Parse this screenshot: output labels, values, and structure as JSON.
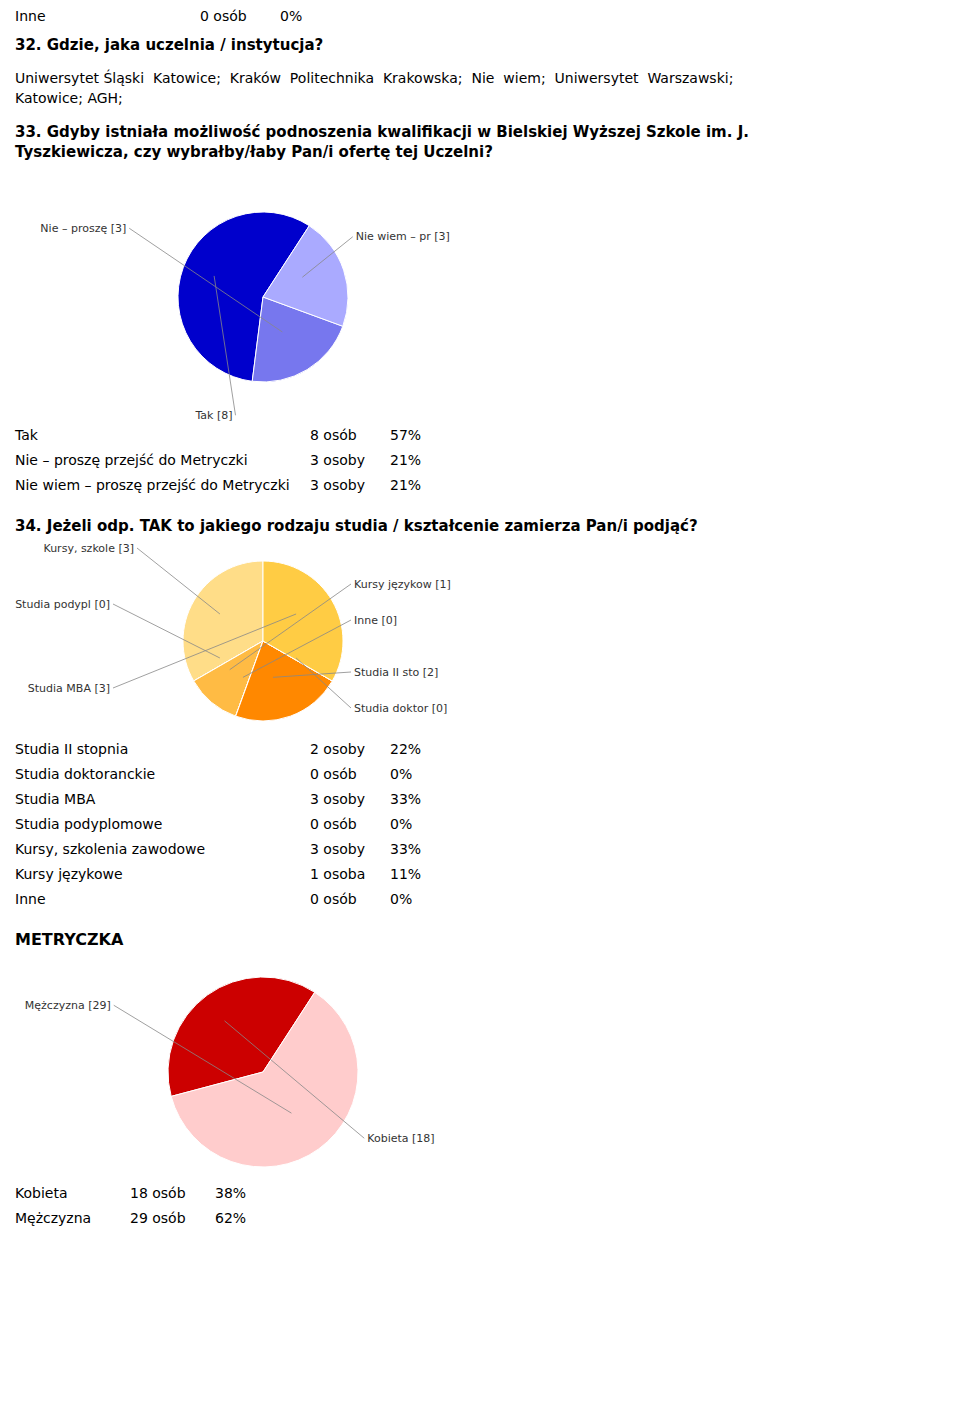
{
  "chart_data": [
    {
      "type": "pie",
      "annotations": [
        {
          "cells": [
            "Inne",
            "0 osób",
            "0%"
          ]
        },
        {
          "heading": "32. Gdzie, jaka uczelnia / instytucja?"
        },
        {
          "text": "Uniwersytet Śląski  Katowice;  Kraków  Politechnika  Krakowska;  Nie  wiem;  Uniwersytet  Warszawski;"
        },
        {
          "text": "Katowice; AGH;"
        }
      ],
      "title": "33. Gdyby istniała możliwość podnoszenia kwalifikacji w Bielskiej Wyższej Szkole im. J.\nTyszkiewicza, czy wybrałby/łaby Pan/i ofertę tej Uczelni?",
      "categories": [
        "Tak [8]",
        "Nie – proszę [3]",
        "Nie wiem – pr [3]"
      ],
      "values": [
        8,
        3,
        3
      ],
      "colors": [
        "#0000cc",
        "#7777ee",
        "#aaaaff"
      ],
      "table": [
        {
          "label": "Tak",
          "count": "8 osób",
          "pct": "57%"
        },
        {
          "label": "Nie – proszę przejść do Metryczki",
          "count": "3 osoby",
          "pct": "21%"
        },
        {
          "label": "Nie wiem – proszę przejść do Metryczki",
          "count": "3 osoby",
          "pct": "21%"
        }
      ]
    },
    {
      "type": "pie",
      "title": "34. Jeżeli odp. TAK to jakiego rodzaju studia / kształcenie zamierza Pan/i podjąć?",
      "categories": [
        "Kursy, szkole [3]",
        "Studia podypl [0]",
        "Kursy językow [1]",
        "Inne [0]",
        "Studia II sto [2]",
        "Studia doktor [0]",
        "Studia MBA [3]"
      ],
      "values": [
        3,
        0.001,
        1,
        0.001,
        2,
        0.001,
        3
      ],
      "colors": [
        "#ffdd88",
        "#ffcc66",
        "#ffbb44",
        "#ffaa22",
        "#ff8800",
        "#ee6600",
        "#ffcc44"
      ],
      "table": [
        {
          "label": "Studia II stopnia",
          "count": "2 osoby",
          "pct": "22%"
        },
        {
          "label": "Studia doktoranckie",
          "count": "0 osób",
          "pct": "0%"
        },
        {
          "label": "Studia MBA",
          "count": "3 osoby",
          "pct": "33%"
        },
        {
          "label": "Studia podyplomowe",
          "count": "0 osób",
          "pct": "0%"
        },
        {
          "label": "Kursy, szkolenia zawodowe",
          "count": "3 osoby",
          "pct": "33%"
        },
        {
          "label": "Kursy językowe",
          "count": "1 osoba",
          "pct": "11%"
        },
        {
          "label": "Inne",
          "count": "0 osób",
          "pct": "0%"
        }
      ]
    },
    {
      "type": "pie",
      "title": "METRYCZKA",
      "categories": [
        "Kobieta [18]",
        "Mężczyzna [29]"
      ],
      "values": [
        18,
        29
      ],
      "colors": [
        "#cc0000",
        "#ffcccc"
      ],
      "table": [
        {
          "label": "Kobieta",
          "count": "18 osób",
          "pct": "38%"
        },
        {
          "label": "Mężczyzna",
          "count": "29 osób",
          "pct": "62%"
        }
      ]
    }
  ]
}
